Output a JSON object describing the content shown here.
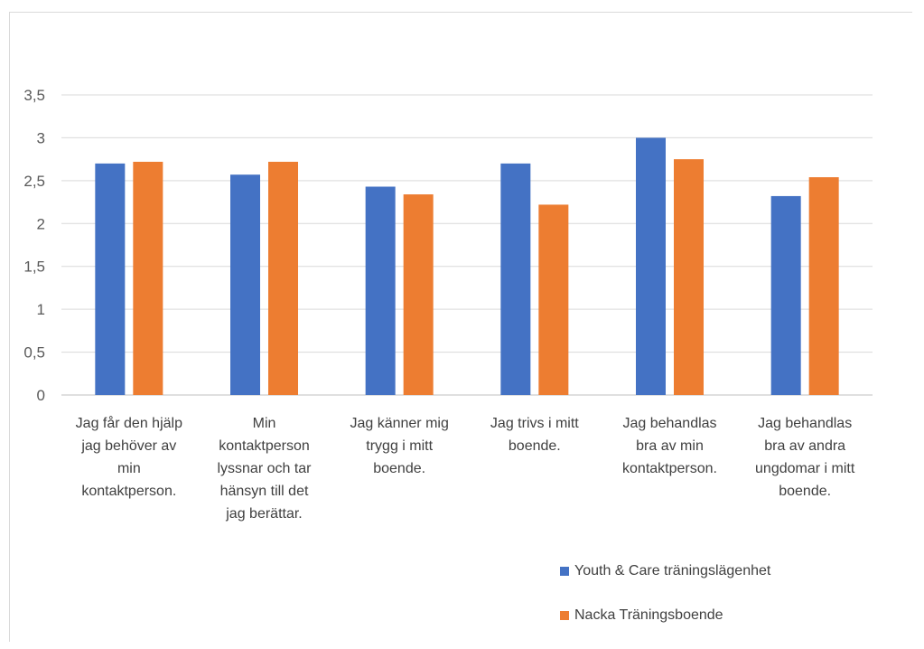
{
  "chart_data": {
    "type": "bar",
    "categories": [
      [
        "Jag får den hjälp",
        "jag behöver av",
        "min",
        "kontaktperson."
      ],
      [
        "Min",
        "kontaktperson",
        "lyssnar och tar",
        "hänsyn till det",
        "jag berättar."
      ],
      [
        "Jag känner mig",
        "trygg i mitt",
        "boende."
      ],
      [
        "Jag trivs i mitt",
        "boende."
      ],
      [
        "Jag behandlas",
        "bra av min",
        "kontaktperson."
      ],
      [
        "Jag behandlas",
        "bra av andra",
        "ungdomar i mitt",
        "boende."
      ]
    ],
    "series": [
      {
        "name": "Youth & Care träningslägenhet",
        "color": "#4472c4",
        "values": [
          2.7,
          2.57,
          2.43,
          2.7,
          3.0,
          2.32
        ]
      },
      {
        "name": "Nacka Träningsboende",
        "color": "#ed7d31",
        "values": [
          2.72,
          2.72,
          2.34,
          2.22,
          2.75,
          2.54
        ]
      }
    ],
    "yticks": [
      "0",
      "0,5",
      "1",
      "1,5",
      "2",
      "2,5",
      "3",
      "3,5"
    ],
    "ylim": [
      0,
      3.5
    ],
    "grid": true,
    "legend_position": "bottom-right",
    "title": "",
    "xlabel": "",
    "ylabel": ""
  }
}
